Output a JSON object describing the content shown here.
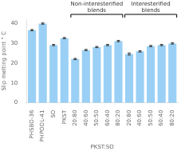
{
  "chart_data": {
    "type": "bar",
    "categories": [
      "PHSBO-36",
      "PHPOOL-41",
      "SO",
      "PKST",
      "20:80",
      "40:60",
      "50:50",
      "60:40",
      "80:20",
      "20:80",
      "40:60",
      "50:50",
      "60:40",
      "80:20"
    ],
    "values": [
      36.5,
      39.8,
      29.0,
      32.5,
      22.0,
      26.5,
      28.0,
      29.0,
      31.0,
      24.5,
      25.8,
      28.5,
      29.0,
      29.8
    ],
    "errors": [
      0.3,
      0.3,
      0.3,
      0.3,
      0.3,
      0.3,
      0.3,
      0.3,
      0.3,
      0.5,
      0.3,
      0.3,
      0.3,
      0.3
    ],
    "xlabel": "PKST:SO",
    "ylabel": "Slip melting point ° C",
    "ylim": [
      0,
      42
    ],
    "yticks": [
      0,
      10,
      20,
      30,
      40
    ],
    "grid": false,
    "annotations": [
      {
        "text": [
          "Non-interesterified",
          "blends"
        ],
        "range": [
          4,
          8
        ]
      },
      {
        "text": [
          "Interesterified",
          "blends"
        ],
        "range": [
          9,
          13
        ]
      }
    ]
  }
}
